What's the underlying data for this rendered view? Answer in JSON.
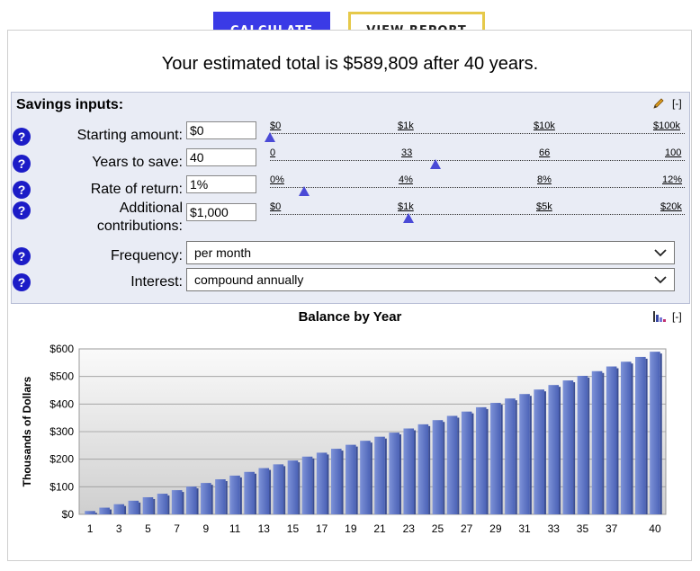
{
  "buttons": {
    "calculate": "CALCULATE",
    "view_report": "VIEW REPORT"
  },
  "summary": "Your estimated total is $589,809 after 40 years.",
  "inputs": {
    "title": "Savings inputs:",
    "collapse": "[-]",
    "help": "?",
    "starting": {
      "label": "Starting amount:",
      "value": "$0",
      "ticks": [
        "$0",
        "$1k",
        "$10k",
        "$100k"
      ],
      "position": 0
    },
    "years": {
      "label": "Years to save:",
      "value": "40",
      "ticks": [
        "0",
        "33",
        "66",
        "100"
      ],
      "position": 0.4
    },
    "rate": {
      "label": "Rate of return:",
      "value": "1%",
      "ticks": [
        "0%",
        "4%",
        "8%",
        "12%"
      ],
      "position": 0.083
    },
    "contrib": {
      "label": "Additional",
      "label2": "contributions:",
      "value": "$1,000",
      "ticks": [
        "$0",
        "$1k",
        "$5k",
        "$20k"
      ],
      "position": 0.333
    },
    "frequency": {
      "label": "Frequency:",
      "value": "per month"
    },
    "interest": {
      "label": "Interest:",
      "value": "compound annually"
    }
  },
  "chart": {
    "title": "Balance by Year",
    "collapse": "[-]",
    "icon": "bar-chart-icon"
  },
  "chart_data": {
    "type": "bar",
    "title": "Balance by Year",
    "ylabel": "Thousands of Dollars",
    "xlabel": "",
    "ylim": [
      0,
      600
    ],
    "yticks": [
      "$0",
      "$100",
      "$200",
      "$300",
      "$400",
      "$500",
      "$600"
    ],
    "xticks": [
      "1",
      "3",
      "5",
      "7",
      "9",
      "11",
      "13",
      "15",
      "17",
      "19",
      "21",
      "23",
      "25",
      "27",
      "29",
      "31",
      "33",
      "35",
      "37",
      "40"
    ],
    "categories": [
      1,
      2,
      3,
      4,
      5,
      6,
      7,
      8,
      9,
      10,
      11,
      12,
      13,
      14,
      15,
      16,
      17,
      18,
      19,
      20,
      21,
      22,
      23,
      24,
      25,
      26,
      27,
      28,
      29,
      30,
      31,
      32,
      33,
      34,
      35,
      36,
      37,
      38,
      39,
      40
    ],
    "values": [
      12.1,
      24.3,
      36.8,
      49.4,
      62.0,
      74.8,
      87.7,
      100.7,
      113.8,
      127.1,
      140.5,
      154.0,
      167.7,
      181.4,
      195.3,
      209.4,
      223.6,
      237.8,
      252.3,
      266.8,
      281.5,
      296.4,
      311.4,
      326.5,
      341.7,
      357.1,
      372.7,
      388.4,
      404.2,
      420.2,
      436.3,
      452.6,
      469.0,
      485.6,
      502.3,
      519.2,
      536.3,
      553.5,
      570.9,
      589.8
    ],
    "grid": true,
    "bar_color": "#5a73c6"
  }
}
